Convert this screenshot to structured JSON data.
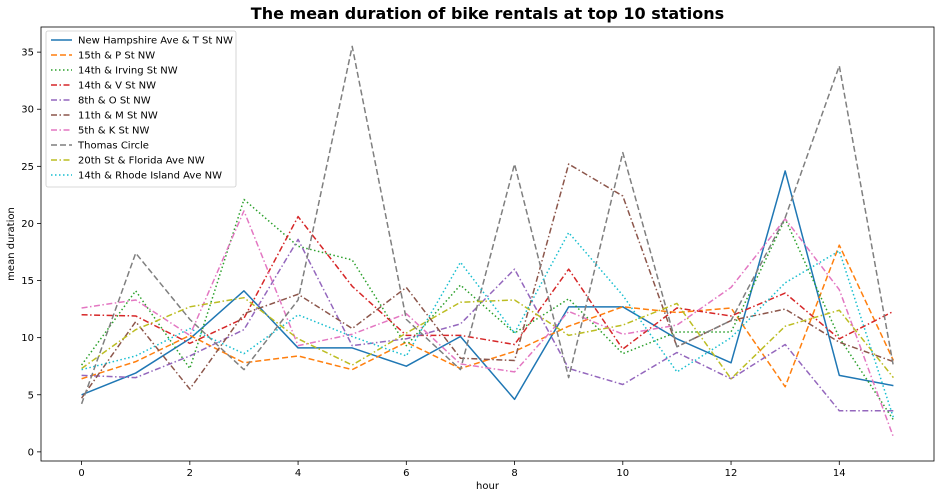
{
  "chart_data": {
    "type": "line",
    "title": "The mean duration of bike rentals at top 10 stations",
    "xlabel": "hour",
    "ylabel": "mean duration",
    "xlim": [
      -0.75,
      15.75
    ],
    "ylim": [
      -0.8,
      37.2
    ],
    "xticks": [
      0,
      2,
      4,
      6,
      8,
      10,
      12,
      14
    ],
    "yticks": [
      0,
      5,
      10,
      15,
      20,
      25,
      30,
      35
    ],
    "legend_position": "top-left",
    "grid": false,
    "x": [
      0,
      1,
      2,
      3,
      4,
      5,
      6,
      7,
      8,
      9,
      10,
      11,
      12,
      13,
      14,
      15
    ],
    "series": [
      {
        "name": "New Hampshire Ave & T St NW",
        "color": "#1f77b4",
        "dash": "solid",
        "values": [
          5.0,
          6.9,
          9.9,
          14.1,
          9.1,
          9.1,
          7.5,
          10.1,
          4.6,
          12.7,
          12.7,
          9.9,
          7.8,
          24.6,
          6.7,
          5.8
        ]
      },
      {
        "name": "15th & P St NW",
        "color": "#ff7f0e",
        "dash": "dashed",
        "values": [
          6.4,
          7.9,
          10.2,
          7.8,
          8.4,
          7.2,
          9.6,
          7.3,
          8.8,
          11.0,
          12.7,
          12.2,
          12.6,
          5.7,
          18.1,
          8.0
        ]
      },
      {
        "name": "14th & Irving St NW",
        "color": "#2ca02c",
        "dash": "dotted",
        "values": [
          7.6,
          14.1,
          7.3,
          22.1,
          18.0,
          16.8,
          9.3,
          14.6,
          10.4,
          13.4,
          8.6,
          10.5,
          10.5,
          20.4,
          10.0,
          2.8
        ]
      },
      {
        "name": "14th & V St NW",
        "color": "#d62728",
        "dash": "dashdot",
        "values": [
          12.0,
          11.9,
          9.5,
          11.7,
          20.6,
          14.5,
          10.2,
          10.2,
          9.4,
          16.0,
          9.0,
          12.6,
          11.9,
          13.9,
          9.9,
          12.3
        ]
      },
      {
        "name": "8th & O St NW",
        "color": "#9467bd",
        "dash": "dashdot",
        "values": [
          6.7,
          6.5,
          8.4,
          10.7,
          18.6,
          9.3,
          9.9,
          11.2,
          16.0,
          7.3,
          5.9,
          8.7,
          6.4,
          9.4,
          3.6,
          3.6
        ]
      },
      {
        "name": "11th & M St NW",
        "color": "#8c564b",
        "dash": "dashdot",
        "values": [
          4.7,
          11.4,
          5.5,
          12.1,
          13.8,
          10.8,
          14.4,
          8.2,
          8.0,
          25.2,
          22.4,
          9.2,
          11.5,
          12.5,
          9.6,
          7.9
        ]
      },
      {
        "name": "5th & K St NW",
        "color": "#e377c2",
        "dash": "dashdot",
        "values": [
          12.6,
          13.3,
          10.2,
          21.1,
          9.3,
          10.3,
          12.1,
          7.7,
          7.0,
          12.3,
          10.3,
          11.1,
          14.4,
          20.4,
          14.2,
          1.3
        ]
      },
      {
        "name": "Thomas Circle",
        "color": "#7f7f7f",
        "dash": "dashed",
        "values": [
          4.2,
          17.4,
          11.6,
          7.2,
          13.3,
          35.5,
          11.6,
          7.2,
          25.2,
          6.5,
          26.2,
          9.2,
          11.5,
          20.5,
          33.8,
          7.5
        ]
      },
      {
        "name": "20th St & Florida Ave NW",
        "color": "#bcbd22",
        "dash": "dashdot",
        "values": [
          7.3,
          10.7,
          12.7,
          13.5,
          9.9,
          7.6,
          10.4,
          13.1,
          13.3,
          10.2,
          11.1,
          13.0,
          6.4,
          11.0,
          12.4,
          6.5
        ]
      },
      {
        "name": "14th & Rhode Island Ave NW",
        "color": "#17becf",
        "dash": "dotted",
        "values": [
          7.2,
          8.4,
          10.8,
          8.6,
          12.0,
          10.1,
          8.4,
          16.6,
          10.4,
          19.2,
          13.7,
          7.0,
          10.0,
          14.8,
          17.6,
          3.0
        ]
      }
    ]
  }
}
